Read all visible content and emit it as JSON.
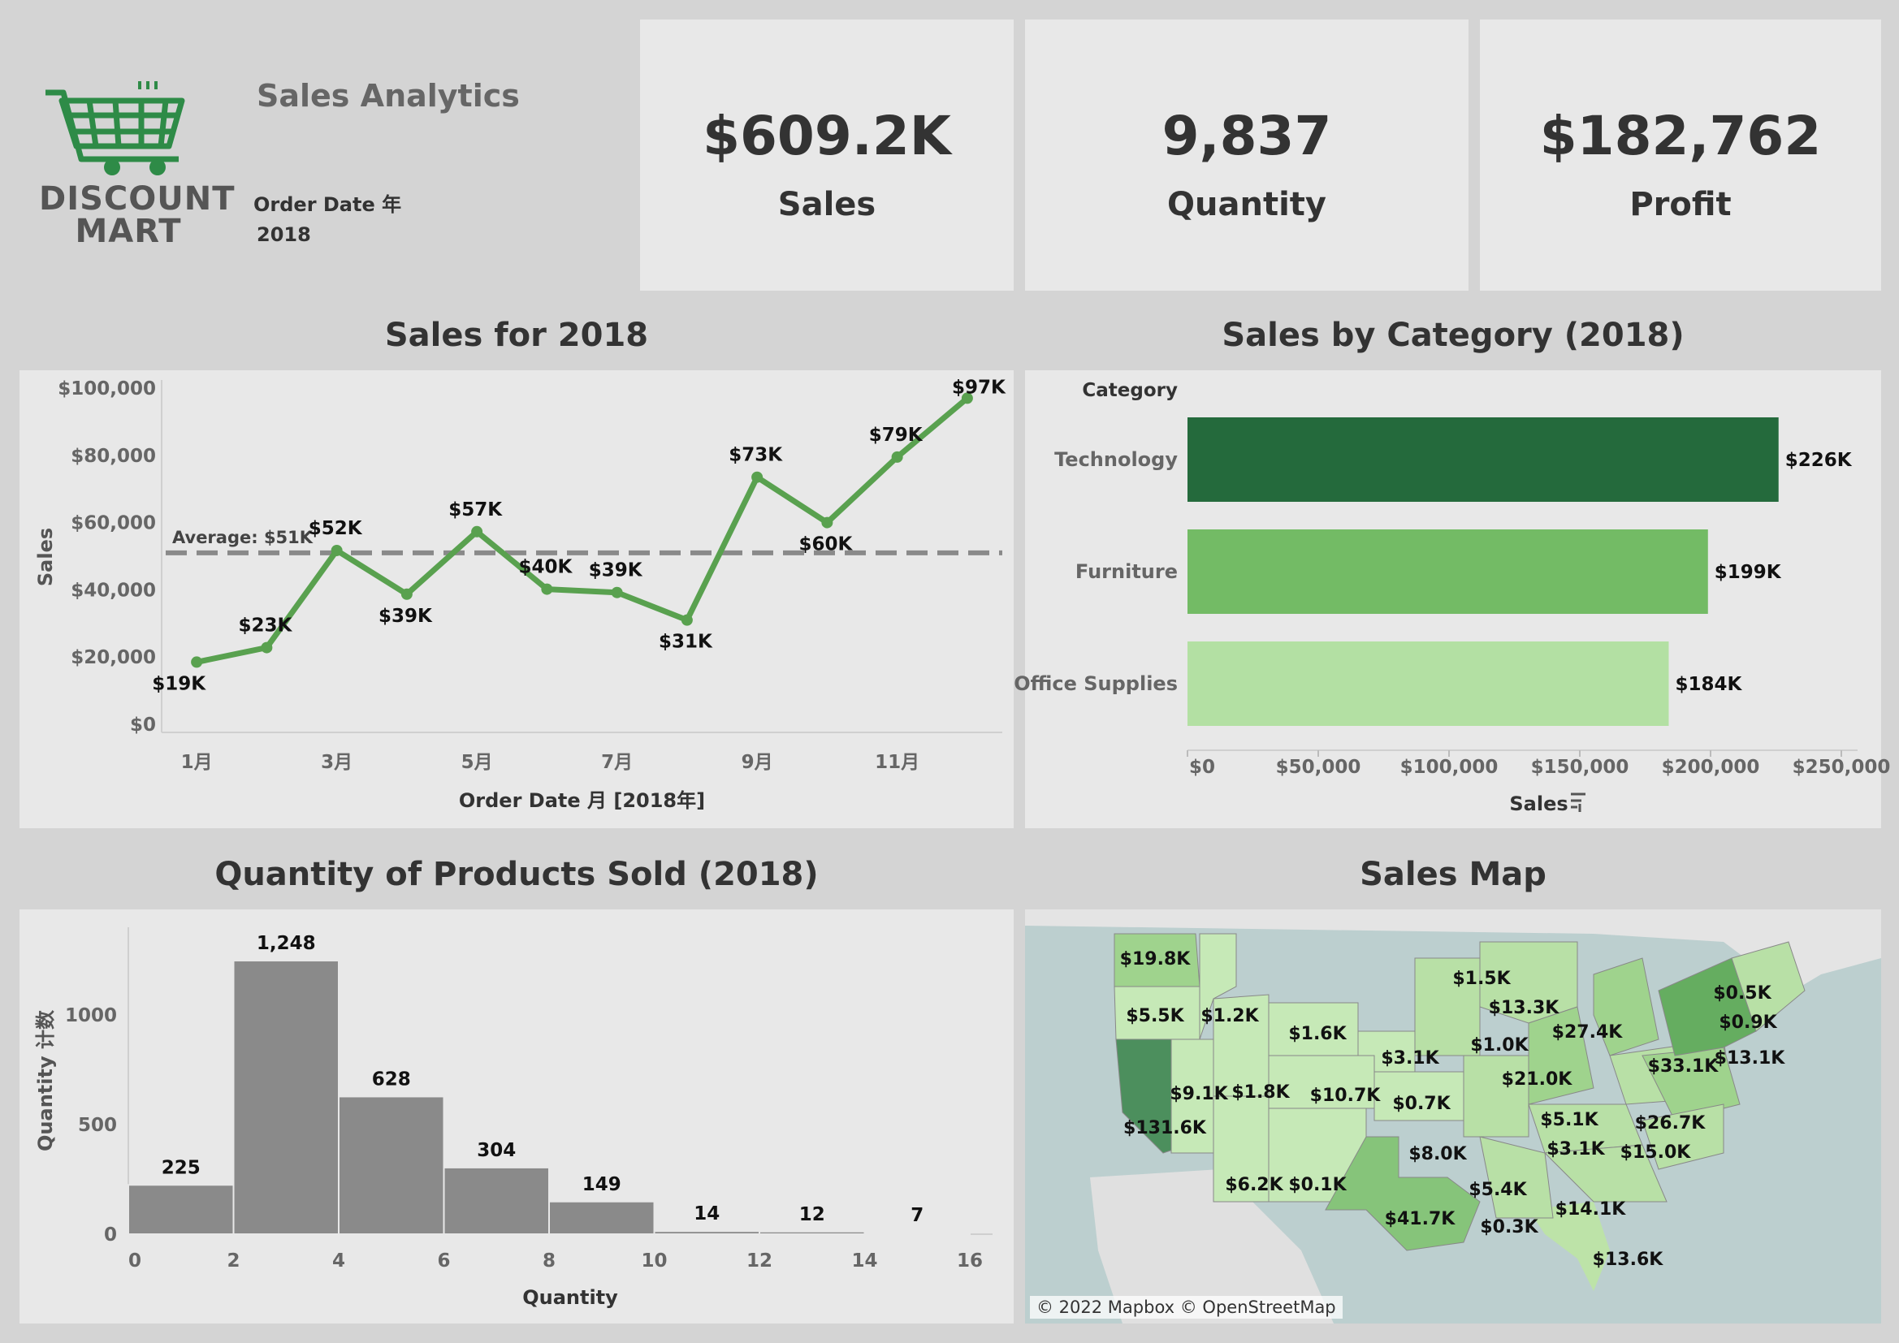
{
  "header": {
    "logo_line1": "DISCOUNT",
    "logo_line2": "MART",
    "title": "Sales Analytics",
    "filter_label": "Order Date 年",
    "filter_value": "2018"
  },
  "kpis": [
    {
      "value": "$609.2K",
      "label": "Sales"
    },
    {
      "value": "9,837",
      "label": "Quantity"
    },
    {
      "value": "$182,762",
      "label": "Profit"
    }
  ],
  "titles": {
    "line": "Sales for 2018",
    "category": "Sales by Category (2018)",
    "histogram": "Quantity of Products Sold (2018)",
    "map": "Sales Map"
  },
  "map": {
    "attribution": "© 2022 Mapbox © OpenStreetMap",
    "labels": [
      "$19.8K",
      "$5.5K",
      "$1.2K",
      "$1.6K",
      "$1.5K",
      "$13.3K",
      "$27.4K",
      "$0.5K",
      "$0.9K",
      "$13.1K",
      "$3.1K",
      "$1.0K",
      "$33.1K",
      "$21.0K",
      "$9.1K",
      "$1.8K",
      "$10.7K",
      "$0.7K",
      "$131.6K",
      "$5.1K",
      "$26.7K",
      "$8.0K",
      "$3.1K",
      "$15.0K",
      "$6.2K",
      "$0.1K",
      "$5.4K",
      "$41.7K",
      "$0.3K",
      "$14.1K",
      "$13.6K"
    ]
  },
  "chart_data": [
    {
      "type": "line",
      "title": "Sales for 2018",
      "xlabel": "Order Date 月 [2018年]",
      "ylabel": "Sales",
      "x": [
        1,
        2,
        3,
        4,
        5,
        6,
        7,
        8,
        9,
        10,
        11,
        12
      ],
      "xtick_labels": [
        "1月",
        "3月",
        "5月",
        "7月",
        "9月",
        "11月"
      ],
      "xtick_values": [
        1,
        3,
        5,
        7,
        9,
        11
      ],
      "values": [
        18500,
        22800,
        51700,
        38700,
        57300,
        40200,
        39200,
        31000,
        73500,
        60000,
        79500,
        97000
      ],
      "data_labels": [
        "$19K",
        "$23K",
        "$52K",
        "$39K",
        "$57K",
        "$40K",
        "$39K",
        "$31K",
        "$73K",
        "$60K",
        "$79K",
        "$97K"
      ],
      "ylim": [
        0,
        100000
      ],
      "ytick_labels": [
        "$0",
        "$20,000",
        "$40,000",
        "$60,000",
        "$80,000",
        "$100,000"
      ],
      "ytick_values": [
        0,
        20000,
        40000,
        60000,
        80000,
        100000
      ],
      "average_value": 51000,
      "average_label": "Average: $51K",
      "color": "#59a14f"
    },
    {
      "type": "bar",
      "orientation": "horizontal",
      "title": "Sales by Category (2018)",
      "category_header": "Category",
      "categories": [
        "Technology",
        "Furniture",
        "Office Supplies"
      ],
      "values": [
        226000,
        199000,
        184000
      ],
      "data_labels": [
        "$226K",
        "$199K",
        "$184K"
      ],
      "colors": [
        "#246a3c",
        "#73bb65",
        "#b3e0a3"
      ],
      "xlabel": "Sales",
      "xlim": [
        0,
        250000
      ],
      "xtick_values": [
        0,
        50000,
        100000,
        150000,
        200000,
        250000
      ],
      "xtick_labels": [
        "$0",
        "$50,000",
        "$100,000",
        "$150,000",
        "$200,000",
        "$250,000"
      ]
    },
    {
      "type": "bar",
      "subtype": "histogram",
      "title": "Quantity of Products Sold (2018)",
      "xlabel": "Quantity",
      "ylabel": "Quantity 计数",
      "bin_edges": [
        0,
        2,
        4,
        6,
        8,
        10,
        12,
        14,
        16
      ],
      "values": [
        225,
        1248,
        628,
        304,
        149,
        14,
        12,
        7
      ],
      "data_labels": [
        "225",
        "1,248",
        "628",
        "304",
        "149",
        "14",
        "12",
        "7"
      ],
      "ylim": [
        0,
        1400
      ],
      "ytick_values": [
        0,
        500,
        1000
      ],
      "ytick_labels": [
        "0",
        "500",
        "1000"
      ],
      "xtick_values": [
        0,
        2,
        4,
        6,
        8,
        10,
        12,
        14,
        16
      ],
      "xtick_labels": [
        "0",
        "2",
        "4",
        "6",
        "8",
        "10",
        "12",
        "14",
        "16"
      ],
      "color": "#8a8a8a"
    }
  ]
}
